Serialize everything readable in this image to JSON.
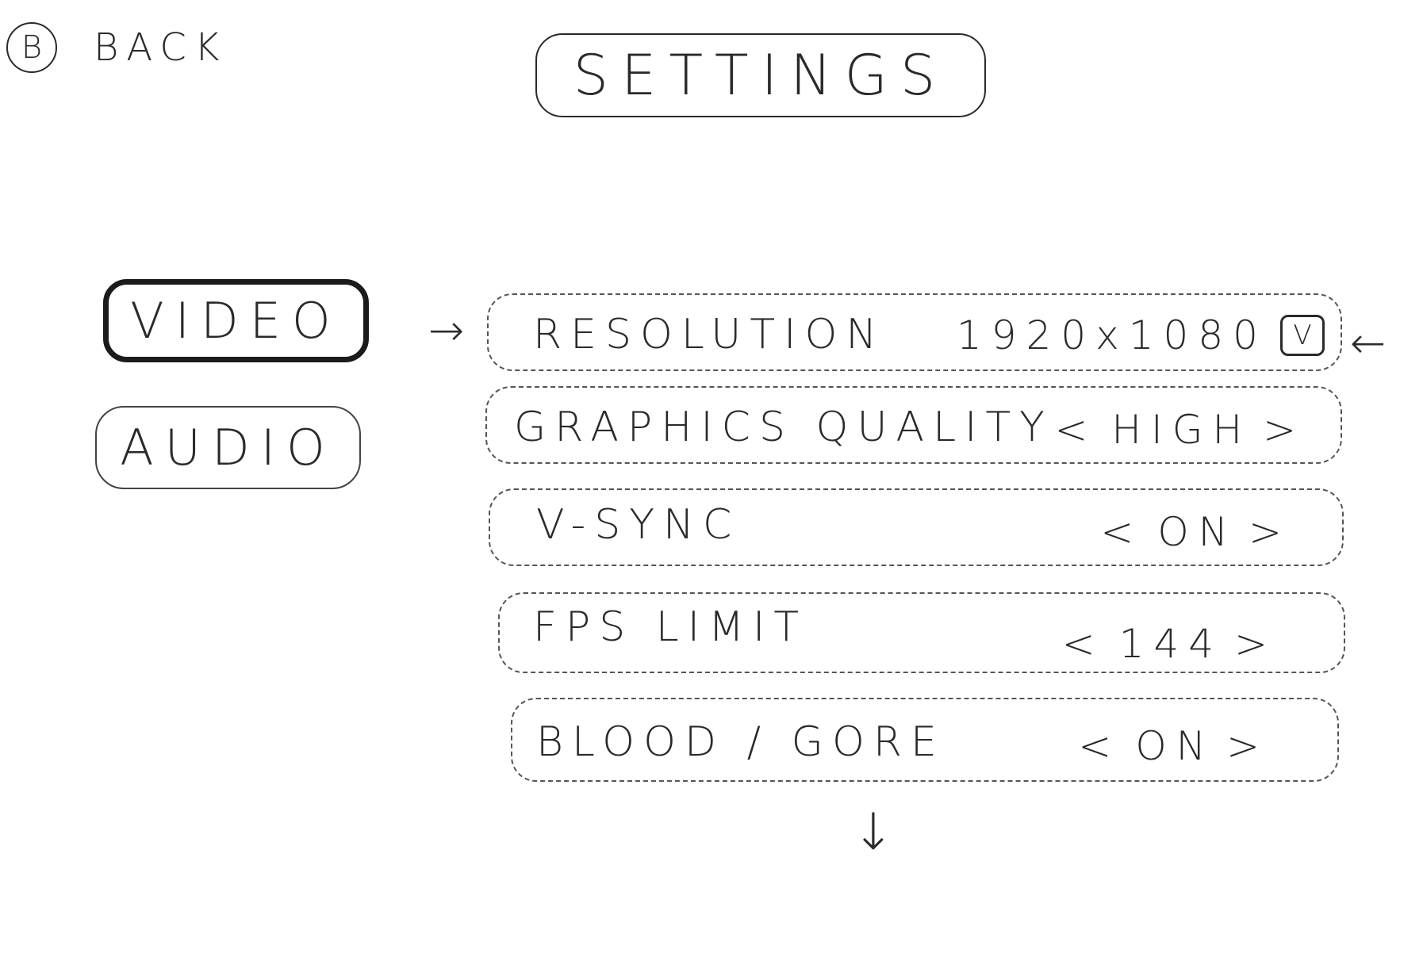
{
  "back": {
    "badge": "B",
    "label": "BACK"
  },
  "title": "SETTINGS",
  "tabs": [
    {
      "label": "VIDEO",
      "selected": true
    },
    {
      "label": "AUDIO",
      "selected": false
    }
  ],
  "selection_arrows": {
    "left": "→",
    "right": "←"
  },
  "settings": [
    {
      "label": "RESOLUTION",
      "value": "1920x1080",
      "control": "dropdown",
      "dropdown_glyph": "V"
    },
    {
      "label": "GRAPHICS QUALITY",
      "value": "HIGH",
      "control": "stepper"
    },
    {
      "label": "V-SYNC",
      "value": "ON",
      "control": "stepper"
    },
    {
      "label": "FPS LIMIT",
      "value": "144",
      "control": "stepper"
    },
    {
      "label": "BLOOD / GORE",
      "value": "ON",
      "control": "stepper"
    }
  ],
  "stepper": {
    "prev": "<",
    "next": ">"
  },
  "scroll_indicator": "↓"
}
